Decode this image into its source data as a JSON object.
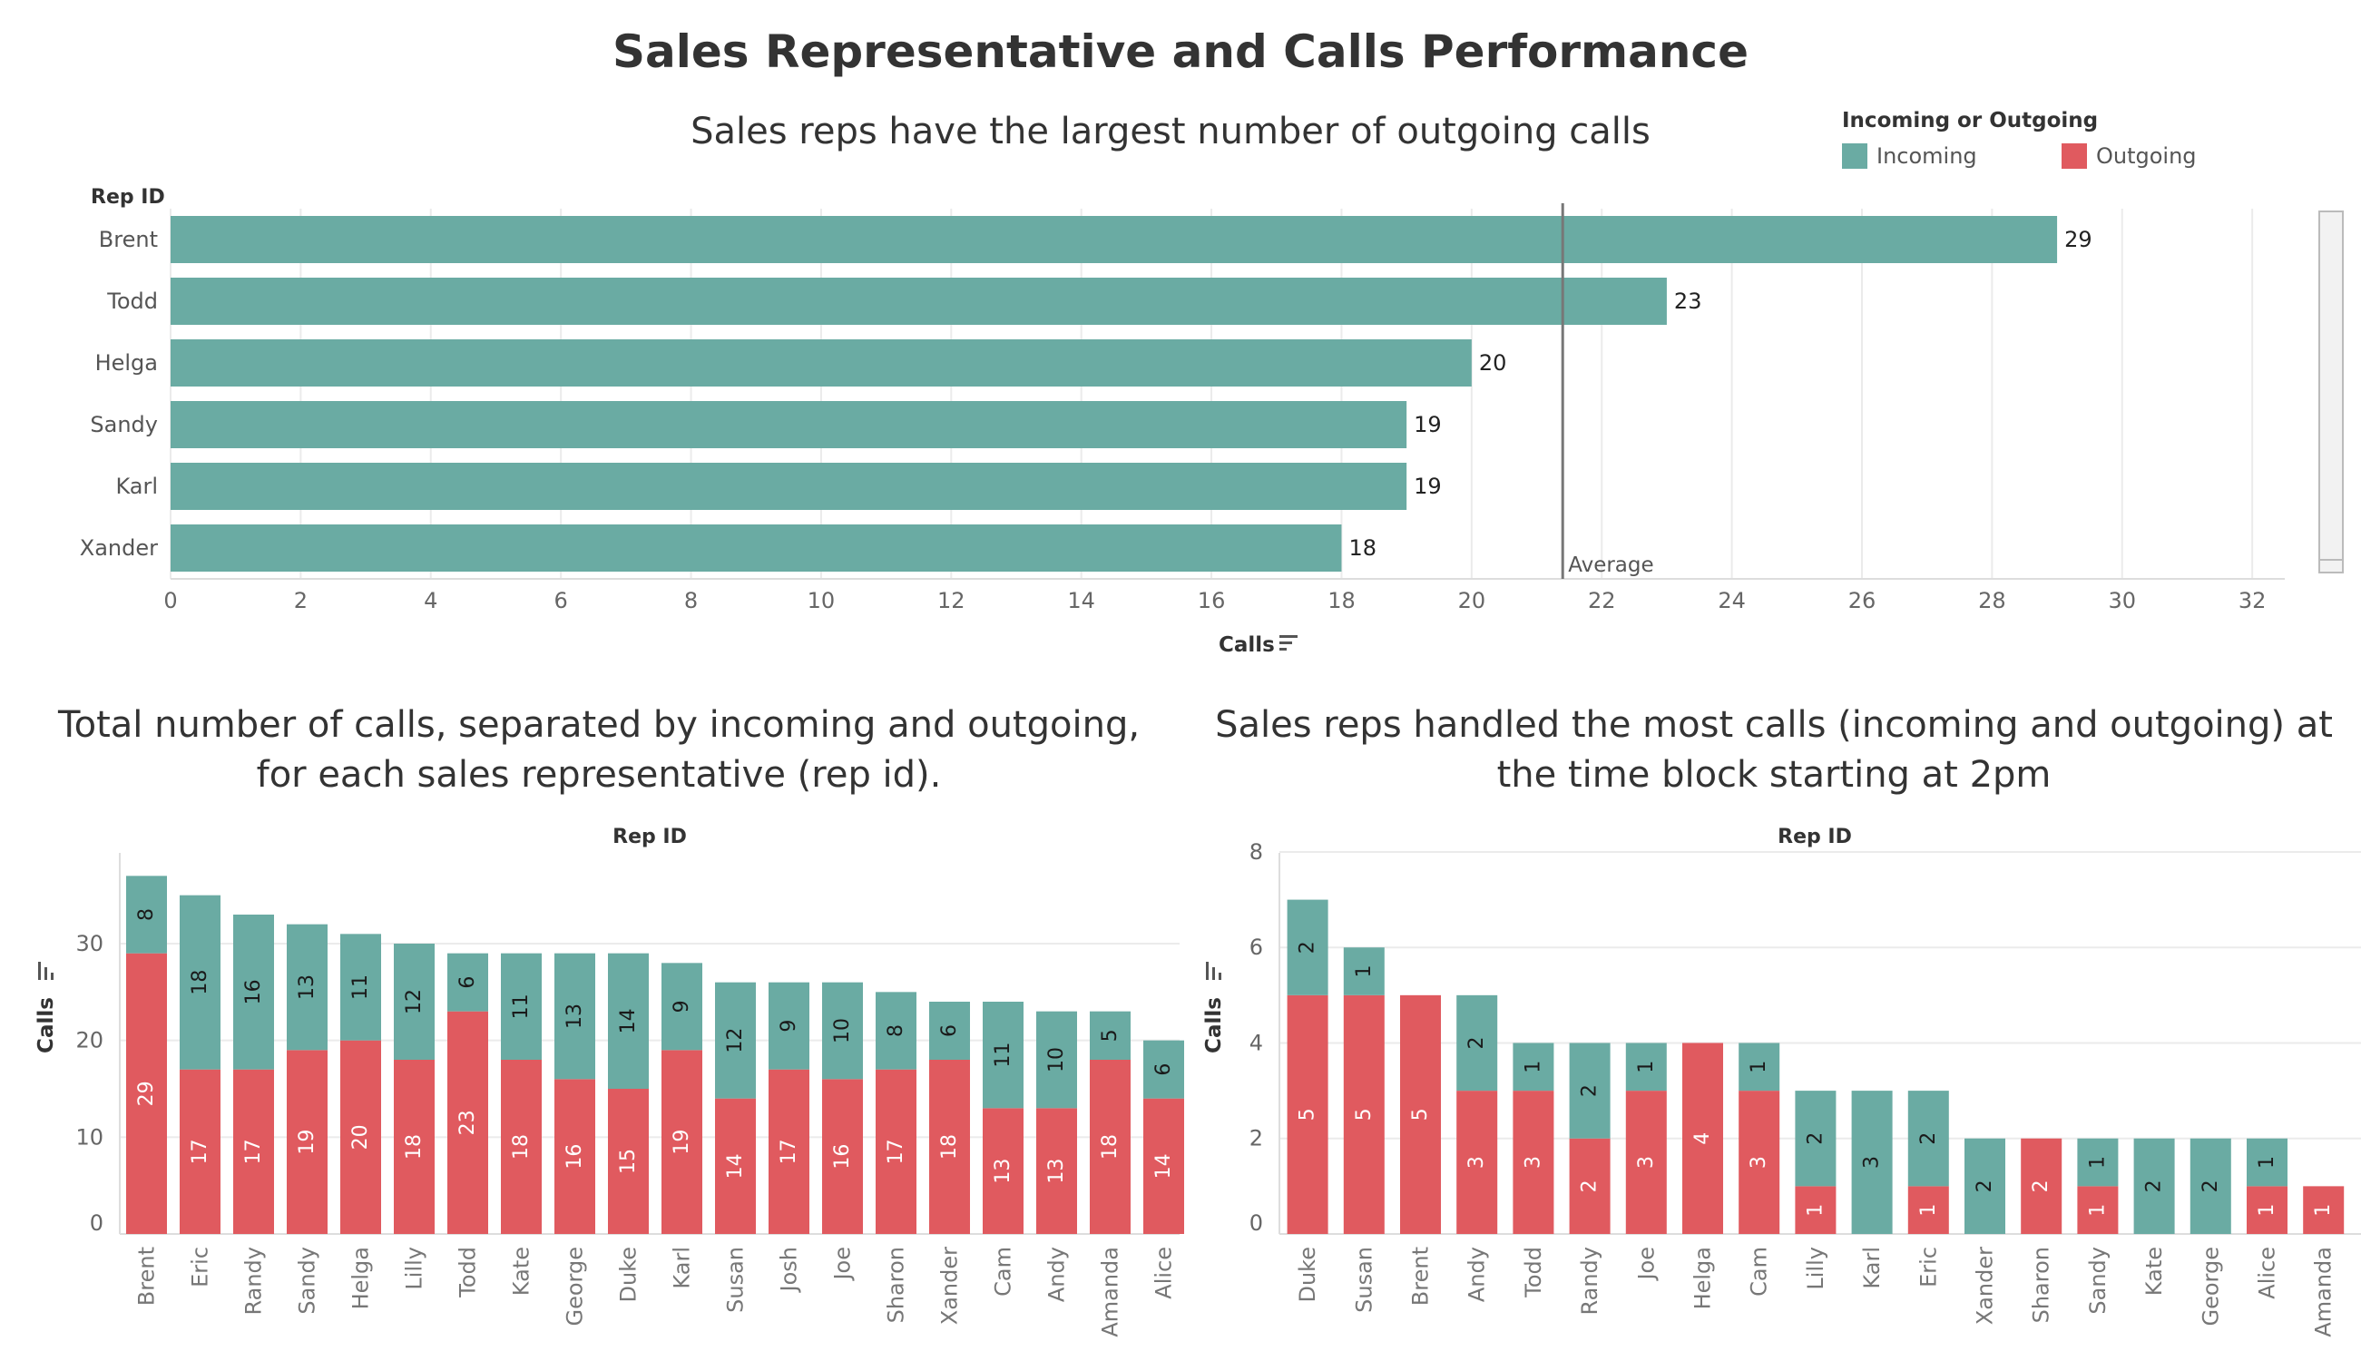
{
  "dashboard": {
    "title": "Sales Representative and Calls Performance"
  },
  "legend": {
    "title": "Incoming or Outgoing",
    "items": [
      {
        "label": "Incoming",
        "color": "#6aaba3"
      },
      {
        "label": "Outgoing",
        "color": "#e05a5f"
      }
    ]
  },
  "colors": {
    "incoming": "#6aaba3",
    "outgoing": "#e05a5f",
    "average_line": "#777777",
    "grid": "#ebebeb"
  },
  "chart_data": [
    {
      "type": "bar",
      "orientation": "horizontal",
      "title": "Sales reps have the largest number of outgoing calls",
      "row_header": "Rep ID",
      "xlabel": "Calls",
      "categories": [
        "Brent",
        "Todd",
        "Helga",
        "Sandy",
        "Karl",
        "Xander"
      ],
      "values": [
        29,
        23,
        20,
        19,
        19,
        18
      ],
      "series_color": "#6aaba3",
      "xlim": [
        0,
        32.5
      ],
      "xticks": [
        0,
        2,
        4,
        6,
        8,
        10,
        12,
        14,
        16,
        18,
        20,
        22,
        24,
        26,
        28,
        30,
        32
      ],
      "reference_line": {
        "label": "Average",
        "value": 21.4
      },
      "grid": true
    },
    {
      "type": "bar",
      "stacked": true,
      "title": "Total number of calls, separated by incoming and outgoing, for each sales representative (rep id).",
      "column_header": "Rep ID",
      "ylabel": "Calls",
      "categories": [
        "Brent",
        "Eric",
        "Randy",
        "Sandy",
        "Helga",
        "Lilly",
        "Todd",
        "Kate",
        "George",
        "Duke",
        "Karl",
        "Susan",
        "Josh",
        "Joe",
        "Sharon",
        "Xander",
        "Cam",
        "Andy",
        "Amanda",
        "Alice"
      ],
      "series": [
        {
          "name": "Outgoing",
          "values": [
            29,
            17,
            17,
            19,
            20,
            18,
            23,
            18,
            16,
            15,
            19,
            14,
            17,
            16,
            17,
            18,
            13,
            13,
            18,
            14
          ]
        },
        {
          "name": "Incoming",
          "values": [
            8,
            18,
            16,
            13,
            11,
            12,
            6,
            11,
            13,
            14,
            9,
            12,
            9,
            10,
            8,
            6,
            11,
            10,
            5,
            6
          ]
        }
      ],
      "ylim": [
        0,
        37.5
      ],
      "yticks": [
        0,
        10,
        20,
        30
      ],
      "grid": true
    },
    {
      "type": "bar",
      "stacked": true,
      "title": "Sales reps handled the most calls (incoming and outgoing) at the time block starting at 2pm",
      "column_header": "Rep ID",
      "ylabel": "Calls",
      "categories": [
        "Duke",
        "Susan",
        "Brent",
        "Andy",
        "Todd",
        "Randy",
        "Joe",
        "Helga",
        "Cam",
        "Lilly",
        "Karl",
        "Eric",
        "Xander",
        "Sharon",
        "Sandy",
        "Kate",
        "George",
        "Alice",
        "Amanda"
      ],
      "series": [
        {
          "name": "Outgoing",
          "values": [
            5,
            5,
            5,
            3,
            3,
            2,
            3,
            4,
            3,
            1,
            0,
            1,
            0,
            2,
            1,
            0,
            0,
            1,
            1
          ]
        },
        {
          "name": "Incoming",
          "values": [
            2,
            1,
            0,
            2,
            1,
            2,
            1,
            0,
            1,
            2,
            3,
            2,
            2,
            0,
            1,
            2,
            2,
            1,
            0
          ]
        }
      ],
      "ylim": [
        0,
        7.6
      ],
      "yticks": [
        0,
        2,
        4,
        6,
        8
      ],
      "grid": true
    }
  ]
}
